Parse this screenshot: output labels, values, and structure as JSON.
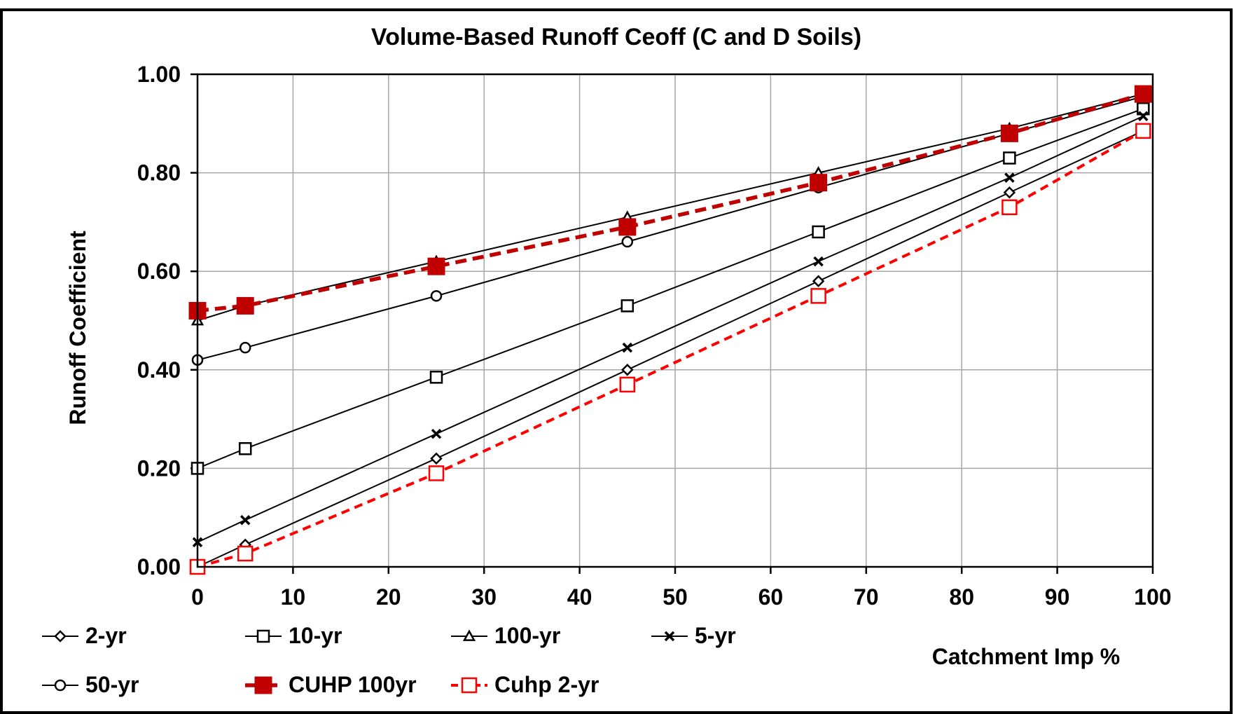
{
  "chart_data": {
    "type": "line",
    "title": "Volume-Based Runoff Ceoff (C and D Soils)",
    "xlabel": "Catchment Imp %",
    "ylabel": "Runoff Coefficient",
    "xlim": [
      0,
      100
    ],
    "ylim": [
      0,
      1
    ],
    "xticks": [
      "0",
      "10",
      "20",
      "30",
      "40",
      "50",
      "60",
      "70",
      "80",
      "90",
      "100"
    ],
    "yticks": [
      "0.00",
      "0.20",
      "0.40",
      "0.60",
      "0.80",
      "1.00"
    ],
    "grid": true,
    "legend_position": "bottom",
    "x": [
      0,
      5,
      25,
      45,
      65,
      85,
      99
    ],
    "series": [
      {
        "name": "2-yr",
        "values": [
          0.0,
          0.045,
          0.22,
          0.4,
          0.58,
          0.76,
          0.885
        ],
        "color": "#000000",
        "marker": "diamond",
        "style": "solid"
      },
      {
        "name": "10-yr",
        "values": [
          0.2,
          0.24,
          0.385,
          0.53,
          0.68,
          0.83,
          0.93
        ],
        "color": "#000000",
        "marker": "square",
        "style": "solid"
      },
      {
        "name": "100-yr",
        "values": [
          0.5,
          0.53,
          0.62,
          0.71,
          0.8,
          0.89,
          0.96
        ],
        "color": "#000000",
        "marker": "triangle",
        "style": "solid"
      },
      {
        "name": "5-yr",
        "values": [
          0.05,
          0.095,
          0.27,
          0.445,
          0.62,
          0.79,
          0.915
        ],
        "color": "#000000",
        "marker": "x",
        "style": "solid"
      },
      {
        "name": "50-yr",
        "values": [
          0.42,
          0.445,
          0.55,
          0.66,
          0.77,
          0.88,
          0.955
        ],
        "color": "#000000",
        "marker": "circle",
        "style": "solid"
      },
      {
        "name": "CUHP 100yr",
        "values": [
          0.52,
          0.53,
          0.61,
          0.69,
          0.78,
          0.88,
          0.96
        ],
        "color": "#c00000",
        "marker": "filled-square",
        "style": "dashed-thick"
      },
      {
        "name": "Cuhp 2-yr",
        "values": [
          0.0,
          0.027,
          0.19,
          0.37,
          0.55,
          0.73,
          0.885
        ],
        "color": "#ff0000",
        "marker": "open-square",
        "style": "dashed"
      }
    ]
  }
}
